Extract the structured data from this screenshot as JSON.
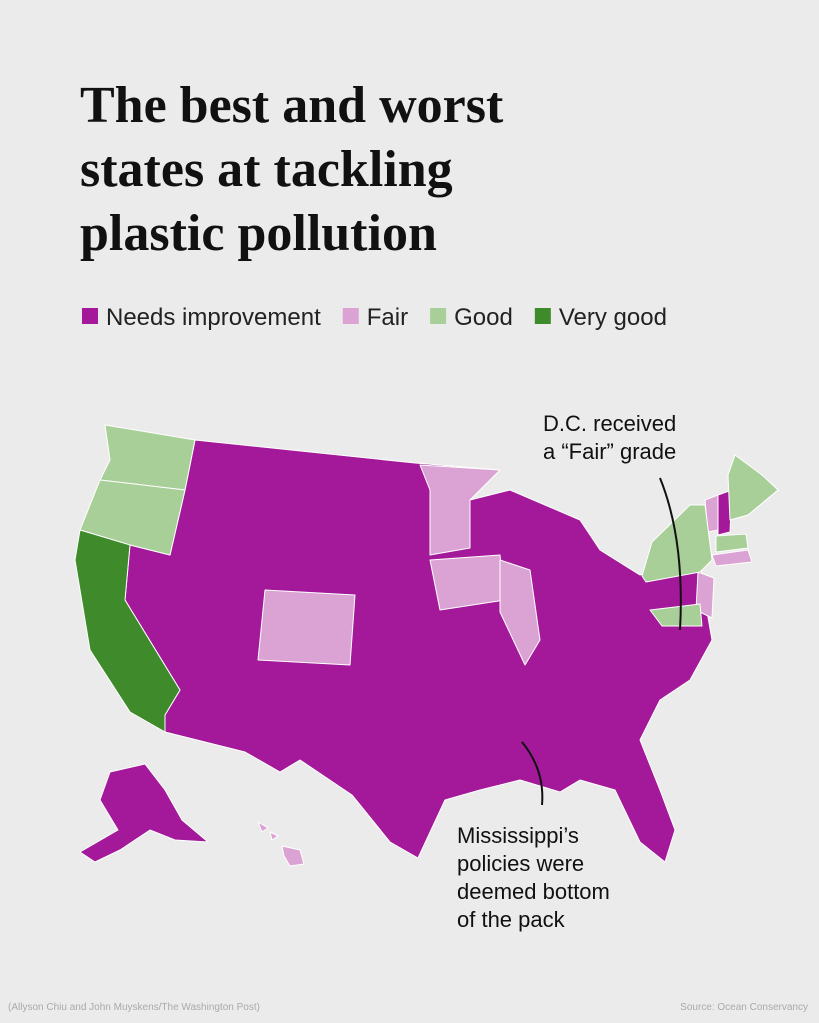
{
  "title_lines": [
    "The best and worst",
    "states at tackling",
    "plastic pollution"
  ],
  "legend": [
    {
      "label": "Needs improvement",
      "color": "#a3199a"
    },
    {
      "label": "Fair",
      "color": "#dba3d3"
    },
    {
      "label": "Good",
      "color": "#a7cf97"
    },
    {
      "label": "Very good",
      "color": "#3f8b2b"
    }
  ],
  "annotations": [
    {
      "lines": [
        "D.C. received",
        "a “Fair” grade"
      ]
    },
    {
      "lines": [
        "Mississippi’s",
        "policies were",
        "deemed bottom",
        "of the pack"
      ]
    }
  ],
  "credit": "(Allyson Chiu and John Muyskens/The Washington Post)",
  "source": "Source: Ocean Conservancy"
}
